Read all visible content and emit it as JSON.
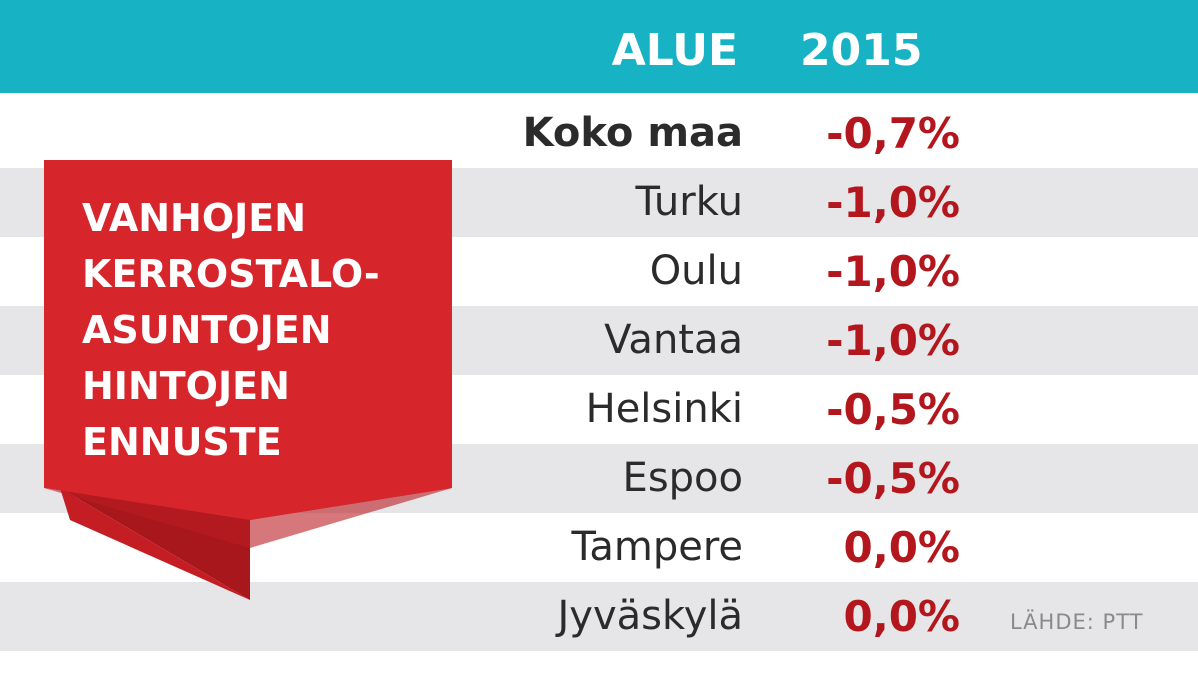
{
  "chart_data": {
    "type": "table",
    "columns": [
      "ALUE",
      "2015"
    ],
    "rows": [
      {
        "region": "Koko maa",
        "value": "-0,7%",
        "num": -0.7
      },
      {
        "region": "Turku",
        "value": "-1,0%",
        "num": -1.0
      },
      {
        "region": "Oulu",
        "value": "-1,0%",
        "num": -1.0
      },
      {
        "region": "Vantaa",
        "value": "-1,0%",
        "num": -1.0
      },
      {
        "region": "Helsinki",
        "value": "-0,5%",
        "num": -0.5
      },
      {
        "region": "Espoo",
        "value": "-0,5%",
        "num": -0.5
      },
      {
        "region": "Tampere",
        "value": "0,0%",
        "num": 0.0
      },
      {
        "region": "Jyväskylä",
        "value": "0,0%",
        "num": 0.0
      }
    ],
    "title_lines": [
      "VANHOJEN",
      "KERROSTALO-",
      "ASUNTOJEN",
      "HINTOJEN",
      "ENNUSTE"
    ],
    "source": "LÄHDE: PTT"
  },
  "colors": {
    "header_bg": "#17b3c5",
    "header_text": "#ffffff",
    "value_text": "#b3171d",
    "region_text": "#2b2b2b",
    "alt_row": "#e6e6e8",
    "ribbon_main": "#d6262c",
    "ribbon_dark": "#a8171c",
    "source_text": "#8a8a8a"
  }
}
